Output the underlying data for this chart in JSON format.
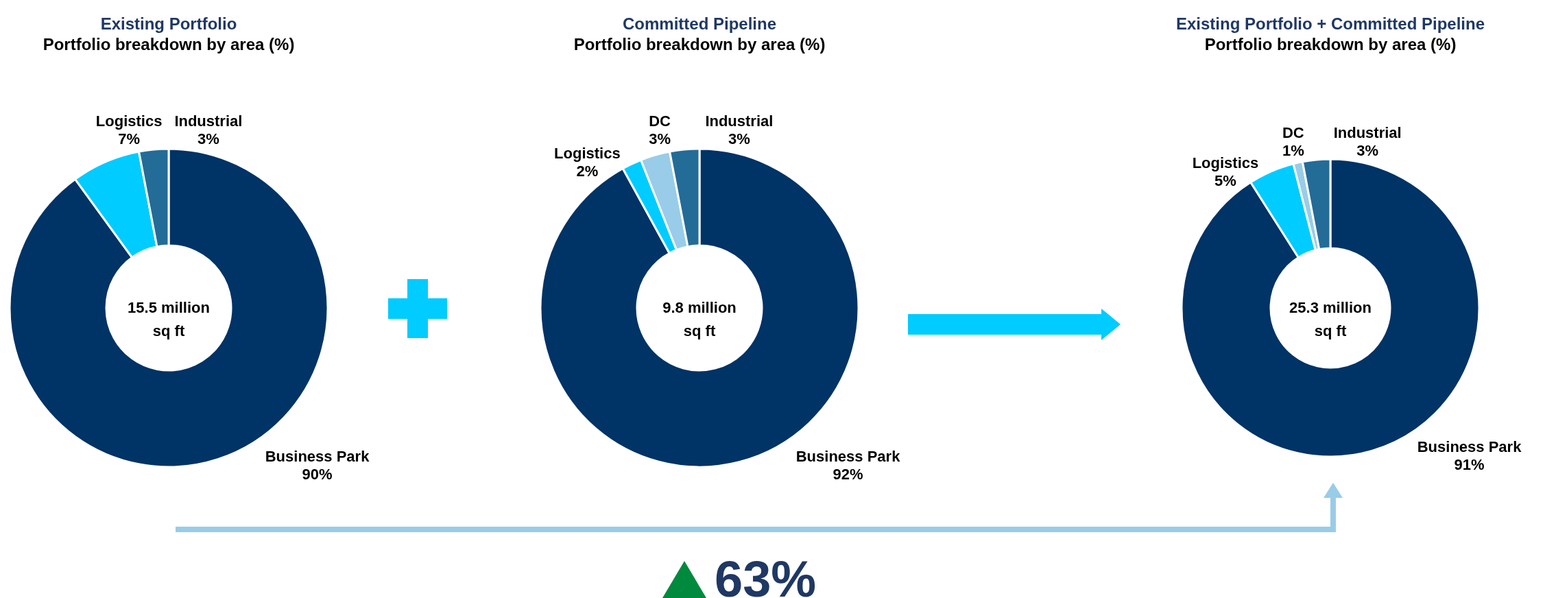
{
  "chart_data": [
    {
      "type": "donut",
      "title": "Existing Portfolio",
      "subtitle": "Portfolio breakdown by area (%)",
      "categories": [
        "Business Park",
        "Logistics",
        "Industrial"
      ],
      "values": [
        90,
        7,
        3
      ],
      "value_labels": [
        "90%",
        "7%",
        "3%"
      ],
      "colors": [
        "#003366",
        "#00ccff",
        "#236c97"
      ],
      "annotations": [
        "15.5 million\nsq ft"
      ]
    },
    {
      "type": "donut",
      "title": "Committed Pipeline",
      "subtitle": "Portfolio breakdown by area (%)",
      "categories": [
        "Business Park",
        "Logistics",
        "DC",
        "Industrial"
      ],
      "values": [
        92,
        2,
        3,
        3
      ],
      "value_labels": [
        "92%",
        "2%",
        "3%",
        "3%"
      ],
      "colors": [
        "#003366",
        "#00ccff",
        "#99cce8",
        "#236c97"
      ],
      "annotations": [
        "9.8 million\nsq ft"
      ]
    },
    {
      "type": "donut",
      "title": "Existing Portfolio + Committed Pipeline",
      "subtitle": "Portfolio breakdown by area (%)",
      "categories": [
        "Business Park",
        "Logistics",
        "DC",
        "Industrial"
      ],
      "values": [
        91,
        5,
        1,
        3
      ],
      "value_labels": [
        "91%",
        "5%",
        "1%",
        "3%"
      ],
      "colors": [
        "#003366",
        "#00ccff",
        "#99cce8",
        "#236c97"
      ],
      "annotations": [
        "25.3 million\nsq ft",
        "63%"
      ]
    }
  ]
}
